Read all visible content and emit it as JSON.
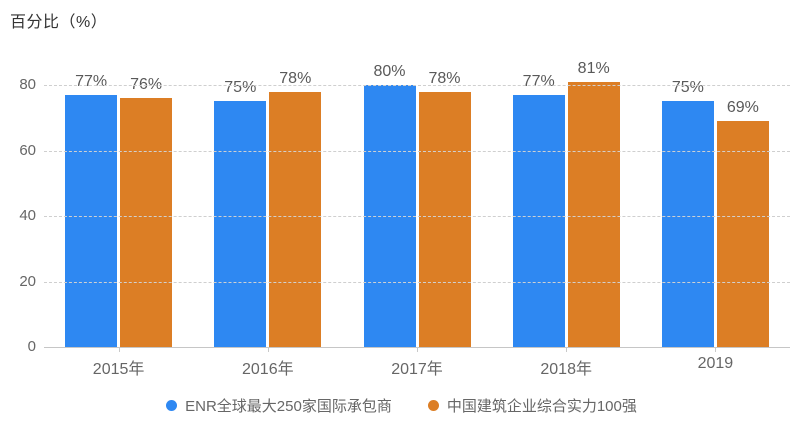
{
  "chart_data": {
    "type": "bar",
    "ylabel": "百分比（%）",
    "categories": [
      "2015年",
      "2016年",
      "2017年",
      "2018年",
      "2019"
    ],
    "series": [
      {
        "name": "ENR全球最大250家国际承包商",
        "color": "#2E88F2",
        "values": [
          77,
          75,
          80,
          77,
          75
        ]
      },
      {
        "name": "中国建筑企业综合实力100强",
        "color": "#DC7E25",
        "values": [
          76,
          78,
          78,
          81,
          69
        ]
      }
    ],
    "data_label_suffix": "%",
    "ylim": [
      0,
      80
    ],
    "yticks": [
      0,
      20,
      40,
      60,
      80
    ],
    "grid": "dashed-horizontal",
    "legend_position": "bottom",
    "colors": {
      "axis_text": "#666666",
      "value_label_text": "#595959",
      "title_text": "#333333",
      "gridline": "#cfcfcf",
      "baseline": "#c6c6c6",
      "background": "#ffffff"
    }
  }
}
